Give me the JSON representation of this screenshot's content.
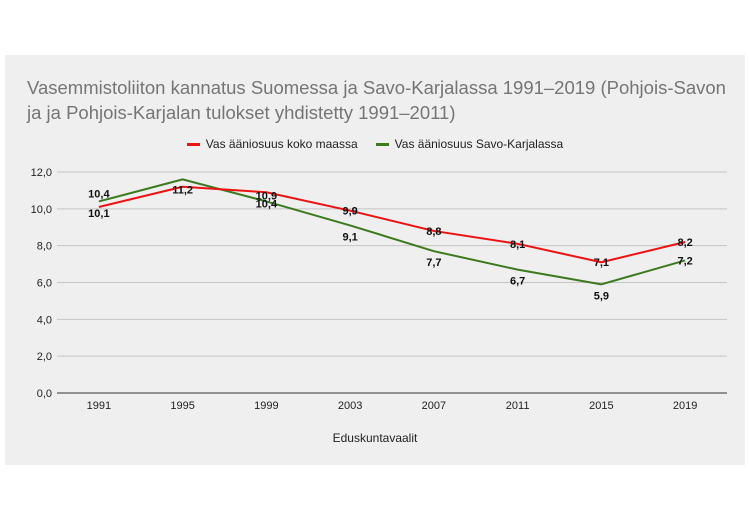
{
  "chart_data": {
    "type": "line",
    "title": "Vasemmistoliiton kannatus Suomessa ja Savo-Karjalassa 1991–2019 (Pohjois-Savon ja ja Pohjois-Karjalan  tulokset yhdistetty  1991–2011)",
    "xlabel": "Eduskuntavaalit",
    "ylabel": "",
    "categories": [
      "1991",
      "1995",
      "1999",
      "2003",
      "2007",
      "2011",
      "2015",
      "2019"
    ],
    "ylim": [
      0,
      12
    ],
    "yticks": [
      "0,0",
      "2,0",
      "4,0",
      "6,0",
      "8,0",
      "10,0",
      "12,0"
    ],
    "grid": true,
    "legend_position": "top",
    "series": [
      {
        "name": "Vas ääniosuus koko maassa",
        "color": "#ee1111",
        "values": [
          10.1,
          11.2,
          10.9,
          9.9,
          8.8,
          8.1,
          7.1,
          8.2
        ],
        "labels": [
          "10,1",
          "11,2",
          "10,9",
          "9,9",
          "8,8",
          "8,1",
          "7,1",
          "8,2"
        ]
      },
      {
        "name": "Vas ääniosuus Savo-Karjalassa",
        "color": "#3b7a1e",
        "values": [
          10.4,
          11.6,
          10.4,
          9.1,
          7.7,
          6.7,
          5.9,
          7.2
        ],
        "labels": [
          "10,4",
          "",
          "10,4",
          "9,1",
          "7,7",
          "6,7",
          "5,9",
          "7,2"
        ]
      }
    ]
  }
}
